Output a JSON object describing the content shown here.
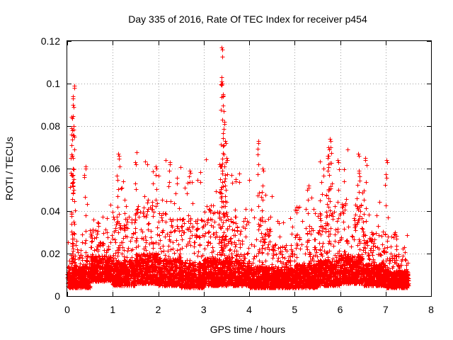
{
  "chart_data": {
    "type": "scatter",
    "title": "Day 335 of 2016, Rate Of TEC Index for receiver p454",
    "xlabel": "GPS time / hours",
    "ylabel": "ROTI / TECUs",
    "xlim": [
      0,
      8
    ],
    "ylim": [
      0,
      0.12
    ],
    "grid": true,
    "marker": "plus",
    "color": "#ff0000",
    "x_ticks": [
      0,
      1,
      2,
      3,
      4,
      5,
      6,
      7,
      8
    ],
    "x_tick_labels": [
      "0",
      "1",
      "2",
      "3",
      "4",
      "5",
      "6",
      "7",
      "8"
    ],
    "y_ticks": [
      0,
      0.02,
      0.04,
      0.06,
      0.08,
      0.1,
      0.12
    ],
    "y_tick_labels": [
      "0",
      "0.02",
      "0.04",
      "0.06",
      "0.08",
      "0.1",
      "0.12"
    ],
    "data_range": {
      "x_min": 0.0,
      "x_max": 7.5
    },
    "peaks": [
      {
        "x": 0.15,
        "y": 0.099
      },
      {
        "x": 0.12,
        "y": 0.094
      },
      {
        "x": 0.13,
        "y": 0.09
      },
      {
        "x": 0.1,
        "y": 0.079
      },
      {
        "x": 0.08,
        "y": 0.058
      },
      {
        "x": 0.4,
        "y": 0.061
      },
      {
        "x": 1.12,
        "y": 0.067
      },
      {
        "x": 1.5,
        "y": 0.063
      },
      {
        "x": 1.95,
        "y": 0.061
      },
      {
        "x": 2.25,
        "y": 0.063
      },
      {
        "x": 2.7,
        "y": 0.059
      },
      {
        "x": 3.4,
        "y": 0.117
      },
      {
        "x": 3.4,
        "y": 0.101
      },
      {
        "x": 3.42,
        "y": 0.095
      },
      {
        "x": 3.45,
        "y": 0.082
      },
      {
        "x": 3.47,
        "y": 0.073
      },
      {
        "x": 3.5,
        "y": 0.065
      },
      {
        "x": 3.35,
        "y": 0.062
      },
      {
        "x": 3.7,
        "y": 0.055
      },
      {
        "x": 4.2,
        "y": 0.073
      },
      {
        "x": 4.3,
        "y": 0.06
      },
      {
        "x": 5.3,
        "y": 0.052
      },
      {
        "x": 5.78,
        "y": 0.074
      },
      {
        "x": 5.75,
        "y": 0.07
      },
      {
        "x": 5.72,
        "y": 0.066
      },
      {
        "x": 5.95,
        "y": 0.064
      },
      {
        "x": 6.4,
        "y": 0.067
      },
      {
        "x": 6.55,
        "y": 0.065
      },
      {
        "x": 7.02,
        "y": 0.064
      },
      {
        "x": 6.7,
        "y": 0.03
      },
      {
        "x": 7.2,
        "y": 0.03
      }
    ],
    "clusters": [
      {
        "x0": 0.0,
        "x1": 0.5,
        "base": 0.009,
        "spread": 0.01,
        "high": 0.02
      },
      {
        "x0": 0.5,
        "x1": 1.0,
        "base": 0.012,
        "spread": 0.012,
        "high": 0.035
      },
      {
        "x0": 1.0,
        "x1": 1.5,
        "base": 0.01,
        "spread": 0.012,
        "high": 0.05
      },
      {
        "x0": 1.5,
        "x1": 2.0,
        "base": 0.011,
        "spread": 0.014,
        "high": 0.058
      },
      {
        "x0": 2.0,
        "x1": 2.5,
        "base": 0.01,
        "spread": 0.013,
        "high": 0.055
      },
      {
        "x0": 2.5,
        "x1": 3.0,
        "base": 0.009,
        "spread": 0.012,
        "high": 0.05
      },
      {
        "x0": 3.0,
        "x1": 3.5,
        "base": 0.01,
        "spread": 0.013,
        "high": 0.06
      },
      {
        "x0": 3.5,
        "x1": 4.0,
        "base": 0.01,
        "spread": 0.012,
        "high": 0.05
      },
      {
        "x0": 4.0,
        "x1": 4.5,
        "base": 0.009,
        "spread": 0.01,
        "high": 0.055
      },
      {
        "x0": 4.5,
        "x1": 5.0,
        "base": 0.009,
        "spread": 0.009,
        "high": 0.028
      },
      {
        "x0": 5.0,
        "x1": 5.5,
        "base": 0.009,
        "spread": 0.011,
        "high": 0.04
      },
      {
        "x0": 5.5,
        "x1": 6.0,
        "base": 0.01,
        "spread": 0.012,
        "high": 0.055
      },
      {
        "x0": 6.0,
        "x1": 6.5,
        "base": 0.011,
        "spread": 0.014,
        "high": 0.06
      },
      {
        "x0": 6.5,
        "x1": 7.0,
        "base": 0.01,
        "spread": 0.01,
        "high": 0.035
      },
      {
        "x0": 7.0,
        "x1": 7.5,
        "base": 0.009,
        "spread": 0.008,
        "high": 0.022
      }
    ]
  }
}
